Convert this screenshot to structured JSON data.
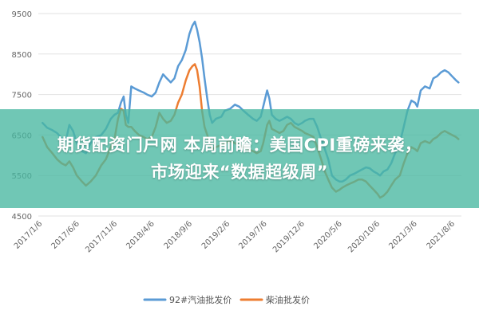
{
  "banner": {
    "line1": "期货配资门户网 本周前瞻：美国CPI重磅来袭，",
    "line2": "市场迎来“数据超级周”"
  },
  "chart_data": {
    "type": "line",
    "title": "",
    "xlabel": "",
    "ylabel": "",
    "ylim": [
      4500,
      9500
    ],
    "yticks": [
      4500,
      5500,
      6500,
      7500,
      8500,
      9500
    ],
    "xlim": [
      "2016-12-20",
      "2021-09-01"
    ],
    "xticks": [
      "2017/1/6",
      "2017/6/6",
      "2017/11/6",
      "2018/4/6",
      "2018/9/6",
      "2019/2/6",
      "2019/7/6",
      "2019/12/6",
      "2020/5/6",
      "2020/10/6",
      "2021/3/6",
      "2021/8/6"
    ],
    "grid": true,
    "legend_position": "bottom",
    "colors": {
      "series1": "#5b9bd5",
      "series2": "#ed7d31"
    },
    "series": [
      {
        "name": "92#汽油批发价",
        "points": [
          [
            "2017-01-06",
            6800
          ],
          [
            "2017-01-25",
            6680
          ],
          [
            "2017-02-15",
            6620
          ],
          [
            "2017-03-06",
            6550
          ],
          [
            "2017-03-25",
            6420
          ],
          [
            "2017-04-10",
            6350
          ],
          [
            "2017-04-25",
            6750
          ],
          [
            "2017-05-10",
            6600
          ],
          [
            "2017-05-25",
            6300
          ],
          [
            "2017-06-15",
            6100
          ],
          [
            "2017-07-01",
            6050
          ],
          [
            "2017-07-20",
            6300
          ],
          [
            "2017-08-10",
            6450
          ],
          [
            "2017-09-01",
            6500
          ],
          [
            "2017-09-20",
            6650
          ],
          [
            "2017-10-10",
            6900
          ],
          [
            "2017-10-25",
            7000
          ],
          [
            "2017-11-08",
            7050
          ],
          [
            "2017-11-20",
            7300
          ],
          [
            "2017-12-01",
            7450
          ],
          [
            "2017-12-10",
            7000
          ],
          [
            "2017-12-20",
            6800
          ],
          [
            "2018-01-01",
            7700
          ],
          [
            "2018-01-15",
            7650
          ],
          [
            "2018-02-01",
            7600
          ],
          [
            "2018-02-20",
            7550
          ],
          [
            "2018-03-06",
            7500
          ],
          [
            "2018-03-25",
            7450
          ],
          [
            "2018-04-10",
            7550
          ],
          [
            "2018-04-25",
            7800
          ],
          [
            "2018-05-10",
            8000
          ],
          [
            "2018-05-25",
            7900
          ],
          [
            "2018-06-10",
            7800
          ],
          [
            "2018-06-25",
            7900
          ],
          [
            "2018-07-10",
            8200
          ],
          [
            "2018-07-25",
            8350
          ],
          [
            "2018-08-10",
            8600
          ],
          [
            "2018-08-25",
            9000
          ],
          [
            "2018-09-06",
            9200
          ],
          [
            "2018-09-16",
            9300
          ],
          [
            "2018-09-25",
            9100
          ],
          [
            "2018-10-05",
            8800
          ],
          [
            "2018-10-15",
            8400
          ],
          [
            "2018-10-25",
            7900
          ],
          [
            "2018-11-05",
            7400
          ],
          [
            "2018-11-15",
            7000
          ],
          [
            "2018-11-25",
            6800
          ],
          [
            "2018-12-10",
            6900
          ],
          [
            "2019-01-01",
            6950
          ],
          [
            "2019-01-15",
            7100
          ],
          [
            "2019-02-06",
            7150
          ],
          [
            "2019-02-25",
            7250
          ],
          [
            "2019-03-15",
            7200
          ],
          [
            "2019-04-01",
            7100
          ],
          [
            "2019-04-20",
            7000
          ],
          [
            "2019-05-10",
            6900
          ],
          [
            "2019-05-25",
            6850
          ],
          [
            "2019-06-10",
            6950
          ],
          [
            "2019-06-20",
            7200
          ],
          [
            "2019-07-06",
            7600
          ],
          [
            "2019-07-15",
            7400
          ],
          [
            "2019-07-25",
            7000
          ],
          [
            "2019-08-10",
            6900
          ],
          [
            "2019-08-25",
            6850
          ],
          [
            "2019-09-10",
            6900
          ],
          [
            "2019-09-25",
            6950
          ],
          [
            "2019-10-10",
            6900
          ],
          [
            "2019-10-25",
            6800
          ],
          [
            "2019-11-10",
            6750
          ],
          [
            "2019-11-25",
            6800
          ],
          [
            "2019-12-06",
            6850
          ],
          [
            "2019-12-25",
            6900
          ],
          [
            "2020-01-10",
            6900
          ],
          [
            "2020-01-25",
            6700
          ],
          [
            "2020-02-10",
            6400
          ],
          [
            "2020-02-25",
            6150
          ],
          [
            "2020-03-10",
            5900
          ],
          [
            "2020-03-25",
            5500
          ],
          [
            "2020-04-10",
            5400
          ],
          [
            "2020-04-25",
            5350
          ],
          [
            "2020-05-06",
            5350
          ],
          [
            "2020-05-20",
            5400
          ],
          [
            "2020-06-06",
            5500
          ],
          [
            "2020-06-25",
            5550
          ],
          [
            "2020-07-10",
            5600
          ],
          [
            "2020-07-25",
            5650
          ],
          [
            "2020-08-10",
            5700
          ],
          [
            "2020-08-25",
            5680
          ],
          [
            "2020-09-10",
            5600
          ],
          [
            "2020-09-25",
            5550
          ],
          [
            "2020-10-06",
            5500
          ],
          [
            "2020-10-20",
            5600
          ],
          [
            "2020-11-05",
            5650
          ],
          [
            "2020-11-20",
            5800
          ],
          [
            "2020-12-06",
            6050
          ],
          [
            "2020-12-25",
            6300
          ],
          [
            "2021-01-10",
            6700
          ],
          [
            "2021-01-25",
            7100
          ],
          [
            "2021-02-10",
            7350
          ],
          [
            "2021-02-25",
            7300
          ],
          [
            "2021-03-06",
            7200
          ],
          [
            "2021-03-20",
            7600
          ],
          [
            "2021-04-06",
            7700
          ],
          [
            "2021-04-25",
            7650
          ],
          [
            "2021-05-10",
            7900
          ],
          [
            "2021-05-25",
            7950
          ],
          [
            "2021-06-10",
            8050
          ],
          [
            "2021-06-25",
            8100
          ],
          [
            "2021-07-10",
            8050
          ],
          [
            "2021-07-25",
            7950
          ],
          [
            "2021-08-10",
            7850
          ],
          [
            "2021-08-20",
            7800
          ]
        ]
      },
      {
        "name": "柴油批发价",
        "points": [
          [
            "2017-01-06",
            6450
          ],
          [
            "2017-01-25",
            6200
          ],
          [
            "2017-02-15",
            6050
          ],
          [
            "2017-03-06",
            5900
          ],
          [
            "2017-03-25",
            5800
          ],
          [
            "2017-04-10",
            5750
          ],
          [
            "2017-04-25",
            5850
          ],
          [
            "2017-05-10",
            5700
          ],
          [
            "2017-05-25",
            5500
          ],
          [
            "2017-06-15",
            5350
          ],
          [
            "2017-07-01",
            5250
          ],
          [
            "2017-07-20",
            5350
          ],
          [
            "2017-08-10",
            5500
          ],
          [
            "2017-09-01",
            5750
          ],
          [
            "2017-09-20",
            5900
          ],
          [
            "2017-10-10",
            6200
          ],
          [
            "2017-10-25",
            6400
          ],
          [
            "2017-11-08",
            6900
          ],
          [
            "2017-11-20",
            7150
          ],
          [
            "2017-12-01",
            7100
          ],
          [
            "2017-12-10",
            6750
          ],
          [
            "2017-12-20",
            6700
          ],
          [
            "2018-01-01",
            6700
          ],
          [
            "2018-01-15",
            6600
          ],
          [
            "2018-02-01",
            6500
          ],
          [
            "2018-02-20",
            6450
          ],
          [
            "2018-03-06",
            6400
          ],
          [
            "2018-03-25",
            6450
          ],
          [
            "2018-04-10",
            6700
          ],
          [
            "2018-04-25",
            7050
          ],
          [
            "2018-05-10",
            6900
          ],
          [
            "2018-05-25",
            6800
          ],
          [
            "2018-06-10",
            6850
          ],
          [
            "2018-06-25",
            7000
          ],
          [
            "2018-07-10",
            7300
          ],
          [
            "2018-07-25",
            7500
          ],
          [
            "2018-08-10",
            7850
          ],
          [
            "2018-08-25",
            8100
          ],
          [
            "2018-09-06",
            8200
          ],
          [
            "2018-09-16",
            8250
          ],
          [
            "2018-09-25",
            8100
          ],
          [
            "2018-10-05",
            7700
          ],
          [
            "2018-10-15",
            7100
          ],
          [
            "2018-10-25",
            6700
          ],
          [
            "2018-11-05",
            6500
          ],
          [
            "2018-11-15",
            6300
          ],
          [
            "2018-11-25",
            6150
          ],
          [
            "2018-12-10",
            6200
          ],
          [
            "2019-01-01",
            6250
          ],
          [
            "2019-01-15",
            6300
          ],
          [
            "2019-02-06",
            6350
          ],
          [
            "2019-02-25",
            6300
          ],
          [
            "2019-03-15",
            6250
          ],
          [
            "2019-04-01",
            6200
          ],
          [
            "2019-04-20",
            6150
          ],
          [
            "2019-05-10",
            6100
          ],
          [
            "2019-05-25",
            6050
          ],
          [
            "2019-06-10",
            6100
          ],
          [
            "2019-06-20",
            6300
          ],
          [
            "2019-07-06",
            6750
          ],
          [
            "2019-07-15",
            6850
          ],
          [
            "2019-07-25",
            6650
          ],
          [
            "2019-08-10",
            6600
          ],
          [
            "2019-08-25",
            6550
          ],
          [
            "2019-09-10",
            6600
          ],
          [
            "2019-09-25",
            6750
          ],
          [
            "2019-10-10",
            6800
          ],
          [
            "2019-10-25",
            6700
          ],
          [
            "2019-11-10",
            6650
          ],
          [
            "2019-11-25",
            6600
          ],
          [
            "2019-12-06",
            6550
          ],
          [
            "2019-12-25",
            6500
          ],
          [
            "2020-01-10",
            6450
          ],
          [
            "2020-01-25",
            6200
          ],
          [
            "2020-02-10",
            5900
          ],
          [
            "2020-02-25",
            5600
          ],
          [
            "2020-03-10",
            5400
          ],
          [
            "2020-03-25",
            5200
          ],
          [
            "2020-04-10",
            5100
          ],
          [
            "2020-04-25",
            5150
          ],
          [
            "2020-05-06",
            5200
          ],
          [
            "2020-05-20",
            5250
          ],
          [
            "2020-06-06",
            5300
          ],
          [
            "2020-06-25",
            5350
          ],
          [
            "2020-07-10",
            5400
          ],
          [
            "2020-07-25",
            5400
          ],
          [
            "2020-08-10",
            5350
          ],
          [
            "2020-08-25",
            5250
          ],
          [
            "2020-09-10",
            5150
          ],
          [
            "2020-09-25",
            5050
          ],
          [
            "2020-10-06",
            4950
          ],
          [
            "2020-10-20",
            5000
          ],
          [
            "2020-11-05",
            5100
          ],
          [
            "2020-11-20",
            5250
          ],
          [
            "2020-12-06",
            5400
          ],
          [
            "2020-12-25",
            5500
          ],
          [
            "2021-01-10",
            5800
          ],
          [
            "2021-01-25",
            6050
          ],
          [
            "2021-02-10",
            6200
          ],
          [
            "2021-02-25",
            6150
          ],
          [
            "2021-03-06",
            6100
          ],
          [
            "2021-03-20",
            6300
          ],
          [
            "2021-04-06",
            6350
          ],
          [
            "2021-04-25",
            6300
          ],
          [
            "2021-05-10",
            6400
          ],
          [
            "2021-05-25",
            6450
          ],
          [
            "2021-06-10",
            6550
          ],
          [
            "2021-06-25",
            6600
          ],
          [
            "2021-07-10",
            6550
          ],
          [
            "2021-07-25",
            6500
          ],
          [
            "2021-08-10",
            6450
          ],
          [
            "2021-08-20",
            6400
          ]
        ]
      }
    ]
  }
}
